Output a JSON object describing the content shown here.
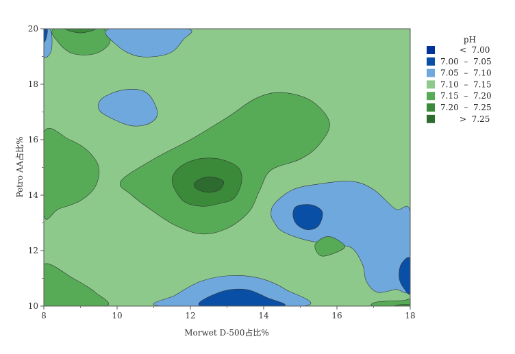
{
  "chart_data": {
    "type": "contour",
    "title": "",
    "xlabel": "Morwet D-500占比%",
    "ylabel": "Petro AA占比%",
    "xlim": [
      8,
      18
    ],
    "ylim": [
      10,
      20
    ],
    "x_ticks": [
      "8",
      "10",
      "12",
      "14",
      "16",
      "18"
    ],
    "y_ticks": [
      "10",
      "12",
      "14",
      "16",
      "18",
      "20"
    ],
    "z_label": "pH",
    "levels": [
      {
        "label": "<  7.00",
        "color": "#003399"
      },
      {
        "label": "7.00  –  7.05",
        "color": "#0a4fa6"
      },
      {
        "label": "7.05  –  7.10",
        "color": "#6fa8dc"
      },
      {
        "label": "7.10  –  7.15",
        "color": "#8dc98b"
      },
      {
        "label": "7.15  –  7.20",
        "color": "#57ab57"
      },
      {
        "label": "7.20  –  7.25",
        "color": "#3a8a3a"
      },
      {
        "label": ">  7.25",
        "color": "#2e6b2e"
      }
    ],
    "regions": [
      {
        "level": 3,
        "points": [
          [
            8,
            10
          ],
          [
            18,
            10
          ],
          [
            18,
            20
          ],
          [
            8,
            20
          ]
        ]
      },
      {
        "level": 4,
        "points": [
          [
            8,
            16.25
          ],
          [
            8.7,
            16
          ],
          [
            9.2,
            15.6
          ],
          [
            9.5,
            15
          ],
          [
            9.4,
            14.3
          ],
          [
            9,
            13.8
          ],
          [
            8.4,
            13.5
          ],
          [
            8,
            13.3
          ]
        ]
      },
      {
        "level": 4,
        "points": [
          [
            8,
            11.5
          ],
          [
            8.8,
            11
          ],
          [
            9.4,
            10.5
          ],
          [
            9.7,
            10
          ],
          [
            8,
            10
          ]
        ]
      },
      {
        "level": 4,
        "points": [
          [
            8.3,
            20
          ],
          [
            8.4,
            19.5
          ],
          [
            8.8,
            19.1
          ],
          [
            9.4,
            19.1
          ],
          [
            9.8,
            19.5
          ],
          [
            9.6,
            20
          ]
        ]
      },
      {
        "level": 5,
        "points": [
          [
            8.6,
            20
          ],
          [
            9,
            19.85
          ],
          [
            9.4,
            20
          ]
        ]
      },
      {
        "level": 4,
        "points": [
          [
            10.1,
            14.5
          ],
          [
            11,
            15.3
          ],
          [
            12,
            16
          ],
          [
            13,
            16.8
          ],
          [
            13.8,
            17.5
          ],
          [
            14.5,
            17.7
          ],
          [
            15.3,
            17.4
          ],
          [
            15.8,
            16.6
          ],
          [
            15.5,
            15.8
          ],
          [
            15,
            15.3
          ],
          [
            14.2,
            14.9
          ],
          [
            13.9,
            14.2
          ],
          [
            13.6,
            13.4
          ],
          [
            13,
            12.8
          ],
          [
            12.3,
            12.6
          ],
          [
            11.6,
            12.9
          ],
          [
            11,
            13.4
          ],
          [
            10.4,
            14
          ]
        ]
      },
      {
        "level": 5,
        "points": [
          [
            11.5,
            14.5
          ],
          [
            11.7,
            15
          ],
          [
            12.2,
            15.3
          ],
          [
            12.8,
            15.3
          ],
          [
            13.3,
            15
          ],
          [
            13.4,
            14.5
          ],
          [
            13.2,
            13.9
          ],
          [
            12.8,
            13.7
          ],
          [
            12.3,
            13.6
          ],
          [
            11.8,
            13.8
          ]
        ]
      },
      {
        "level": 6,
        "points": [
          [
            12.1,
            14.4
          ],
          [
            12.3,
            14.6
          ],
          [
            12.6,
            14.65
          ],
          [
            12.9,
            14.5
          ],
          [
            12.8,
            14.2
          ],
          [
            12.5,
            14.1
          ],
          [
            12.2,
            14.2
          ]
        ]
      },
      {
        "level": 2,
        "points": [
          [
            14.3,
            13
          ],
          [
            14.5,
            12.7
          ],
          [
            15.1,
            12.4
          ],
          [
            15.9,
            12.2
          ],
          [
            16.4,
            12.1
          ],
          [
            16.7,
            11.5
          ],
          [
            16.8,
            10.9
          ],
          [
            17.1,
            10.5
          ],
          [
            17.6,
            10.6
          ],
          [
            18,
            10.7
          ],
          [
            18,
            13.4
          ],
          [
            17.6,
            13.5
          ],
          [
            17,
            14.2
          ],
          [
            16.4,
            14.5
          ],
          [
            15.5,
            14.4
          ],
          [
            14.8,
            14.2
          ],
          [
            14.3,
            13.7
          ],
          [
            14.2,
            13.3
          ]
        ]
      },
      {
        "level": 1,
        "points": [
          [
            14.8,
            13.3
          ],
          [
            14.9,
            13.6
          ],
          [
            15.3,
            13.65
          ],
          [
            15.6,
            13.4
          ],
          [
            15.5,
            12.9
          ],
          [
            15.2,
            12.75
          ],
          [
            14.9,
            12.95
          ]
        ]
      },
      {
        "level": 1,
        "points": [
          [
            18,
            11.7
          ],
          [
            17.75,
            11.5
          ],
          [
            17.7,
            11
          ],
          [
            17.85,
            10.6
          ],
          [
            18,
            10.5
          ]
        ]
      },
      {
        "level": 4,
        "points": [
          [
            15.4,
            12.2
          ],
          [
            15.6,
            11.8
          ],
          [
            16.2,
            12.1
          ],
          [
            16,
            12.4
          ],
          [
            15.7,
            12.5
          ]
        ]
      },
      {
        "level": 4,
        "points": [
          [
            17,
            10
          ],
          [
            17.1,
            10.15
          ],
          [
            17.8,
            10.2
          ],
          [
            18,
            10.25
          ],
          [
            18,
            10
          ]
        ]
      },
      {
        "level": 5,
        "points": [
          [
            17.6,
            10
          ],
          [
            17.7,
            10.05
          ],
          [
            18,
            10.05
          ],
          [
            18,
            10
          ]
        ]
      },
      {
        "level": 2,
        "points": [
          [
            11.2,
            10
          ],
          [
            11.6,
            10.4
          ],
          [
            12.3,
            10.9
          ],
          [
            13.1,
            11.1
          ],
          [
            13.9,
            11
          ],
          [
            14.6,
            10.6
          ],
          [
            15.1,
            10
          ]
        ]
      },
      {
        "level": 1,
        "points": [
          [
            12.3,
            10
          ],
          [
            12.8,
            10.5
          ],
          [
            13.5,
            10.6
          ],
          [
            14.1,
            10.3
          ],
          [
            14.5,
            10
          ]
        ]
      },
      {
        "level": 2,
        "points": [
          [
            8,
            20
          ],
          [
            8.2,
            19.9
          ],
          [
            8.2,
            19.2
          ],
          [
            8,
            19
          ]
        ]
      },
      {
        "level": 1,
        "points": [
          [
            8,
            20
          ],
          [
            8.1,
            19.95
          ],
          [
            8.05,
            19.6
          ],
          [
            8,
            19.55
          ]
        ]
      },
      {
        "level": 2,
        "points": [
          [
            9.8,
            20
          ],
          [
            10,
            19.4
          ],
          [
            10.6,
            19
          ],
          [
            11.4,
            19.1
          ],
          [
            11.8,
            19.6
          ],
          [
            11.9,
            20
          ]
        ]
      },
      {
        "level": 2,
        "points": [
          [
            9.5,
            17.1
          ],
          [
            9.6,
            17.5
          ],
          [
            10.2,
            17.8
          ],
          [
            10.8,
            17.7
          ],
          [
            11.1,
            17
          ],
          [
            10.9,
            16.6
          ],
          [
            10.4,
            16.5
          ],
          [
            9.8,
            16.8
          ]
        ]
      }
    ]
  }
}
